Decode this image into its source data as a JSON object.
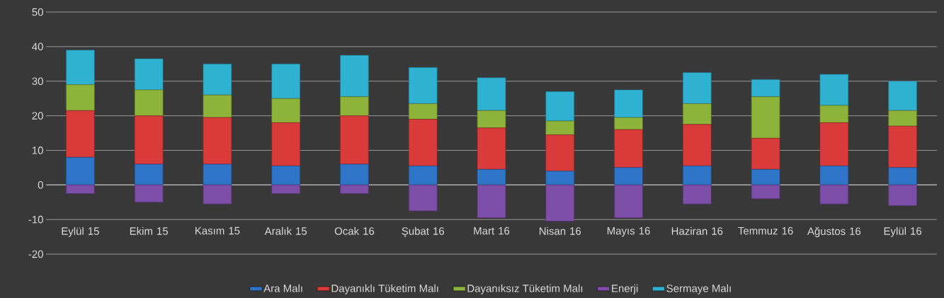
{
  "chart_data": {
    "type": "bar",
    "stacked": true,
    "categories": [
      "Eylül 15",
      "Ekim 15",
      "Kasım 15",
      "Aralık 15",
      "Ocak 16",
      "Şubat 16",
      "Mart 16",
      "Nisan 16",
      "Mayıs 16",
      "Haziran 16",
      "Temmuz 16",
      "Ağustos 16",
      "Eylül 16"
    ],
    "series": [
      {
        "name": "Ara Malı",
        "color": "#2e75c8",
        "values": [
          8,
          6,
          6,
          5.5,
          6,
          5.5,
          4.5,
          4,
          5,
          5.5,
          4.5,
          5.5,
          5
        ]
      },
      {
        "name": "Dayanıklı Tüketim Malı",
        "color": "#d93a3a",
        "values": [
          13.5,
          14,
          13.5,
          12.5,
          14,
          13.5,
          12,
          10.5,
          11,
          12,
          9,
          12.5,
          12
        ]
      },
      {
        "name": "Dayanıksız Tüketim Malı",
        "color": "#8db33a",
        "values": [
          7.5,
          7.5,
          6.5,
          7,
          5.5,
          4.5,
          5,
          4,
          3.5,
          6,
          12,
          5,
          4.5
        ]
      },
      {
        "name": "Enerji",
        "color": "#7d4ea8",
        "values": [
          -2.5,
          -5,
          -5.5,
          -2.5,
          -2.5,
          -7.5,
          -9.5,
          -10.5,
          -9.5,
          -5.5,
          -4,
          -5.5,
          -6
        ]
      },
      {
        "name": "Sermaye Malı",
        "color": "#2fb2d2",
        "values": [
          10,
          9,
          9,
          10,
          12,
          10.5,
          9.5,
          8.5,
          8,
          9,
          5,
          9,
          8.5
        ]
      }
    ],
    "ylim": [
      -20,
      50
    ],
    "yticks": [
      -20,
      -10,
      0,
      10,
      20,
      30,
      40,
      50
    ],
    "grid": "y",
    "legend": "bottom"
  }
}
